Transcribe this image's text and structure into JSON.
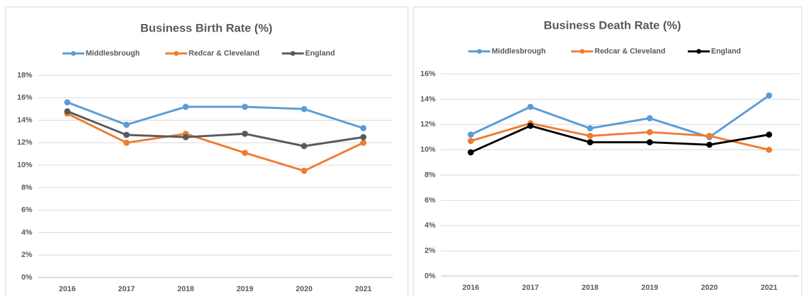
{
  "chart_data": [
    {
      "type": "line",
      "title": "Business Birth Rate (%)",
      "categories": [
        "2016",
        "2017",
        "2018",
        "2019",
        "2020",
        "2021"
      ],
      "series": [
        {
          "name": "Middlesbrough",
          "color": "#5b9bd5",
          "values": [
            15.6,
            13.6,
            15.2,
            15.2,
            15.0,
            13.3
          ]
        },
        {
          "name": "Redcar & Cleveland",
          "color": "#ed7d31",
          "values": [
            14.6,
            12.0,
            12.8,
            11.1,
            9.5,
            12.0
          ]
        },
        {
          "name": "England",
          "color": "#595959",
          "values": [
            14.8,
            12.7,
            12.5,
            12.8,
            11.7,
            12.5
          ]
        }
      ],
      "ylim": [
        0,
        18
      ],
      "yticks": [
        {
          "value": 0,
          "label": "0%"
        },
        {
          "value": 2,
          "label": "2%"
        },
        {
          "value": 4,
          "label": "4%"
        },
        {
          "value": 6,
          "label": "6%"
        },
        {
          "value": 8,
          "label": "8%"
        },
        {
          "value": 10,
          "label": "10%"
        },
        {
          "value": 12,
          "label": "12%"
        },
        {
          "value": 14,
          "label": "14%"
        },
        {
          "value": 16,
          "label": "16%"
        },
        {
          "value": 18,
          "label": "18%"
        }
      ],
      "grid": true,
      "legend": "top"
    },
    {
      "type": "line",
      "title": "Business Death Rate (%)",
      "categories": [
        "2016",
        "2017",
        "2018",
        "2019",
        "2020",
        "2021"
      ],
      "series": [
        {
          "name": "Middlesbrough",
          "color": "#5b9bd5",
          "values": [
            11.2,
            13.4,
            11.7,
            12.5,
            11.0,
            14.3
          ]
        },
        {
          "name": "Redcar & Cleveland",
          "color": "#ed7d31",
          "values": [
            10.7,
            12.1,
            11.1,
            11.4,
            11.1,
            10.0
          ]
        },
        {
          "name": "England",
          "color": "#000000",
          "values": [
            9.8,
            11.9,
            10.6,
            10.6,
            10.4,
            11.2
          ]
        }
      ],
      "ylim": [
        0,
        16
      ],
      "yticks": [
        {
          "value": 0,
          "label": "0%"
        },
        {
          "value": 2,
          "label": "2%"
        },
        {
          "value": 4,
          "label": "4%"
        },
        {
          "value": 6,
          "label": "6%"
        },
        {
          "value": 8,
          "label": "8%"
        },
        {
          "value": 10,
          "label": "10%"
        },
        {
          "value": 12,
          "label": "12%"
        },
        {
          "value": 14,
          "label": "14%"
        },
        {
          "value": 16,
          "label": "16%"
        }
      ],
      "grid": true,
      "legend": "top"
    }
  ]
}
